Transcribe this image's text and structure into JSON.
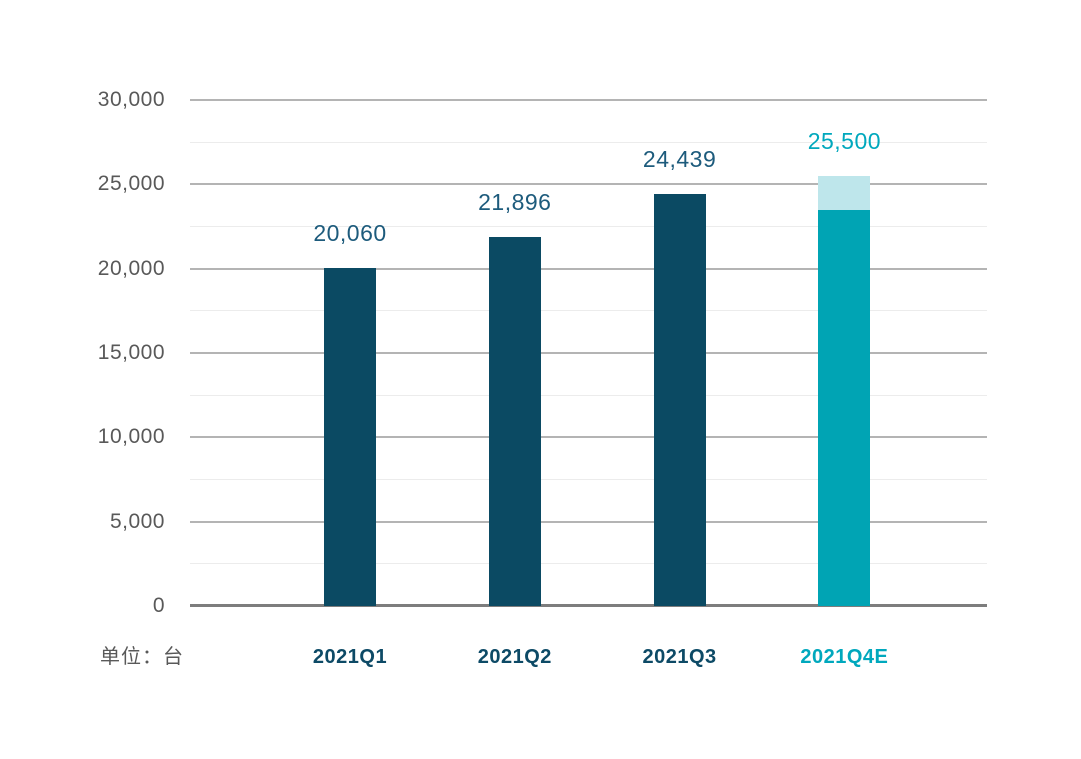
{
  "chart_data": {
    "type": "bar",
    "title": "",
    "unit_label": "单位：台",
    "legend": "none",
    "grid": "horizontal majors every 5000, faint minors every 2500",
    "categories": [
      "2021Q1",
      "2021Q2",
      "2021Q3",
      "2021Q4E"
    ],
    "values": [
      20060,
      21896,
      24439,
      25500
    ],
    "ylim": [
      0,
      30000
    ],
    "bars": [
      {
        "category": "2021Q1",
        "value": 20060,
        "value_label": "20,060",
        "bar_color": "#0b4a63",
        "value_label_color": "#1d5b7c",
        "category_label_color": "#0d4a66"
      },
      {
        "category": "2021Q2",
        "value": 21896,
        "value_label": "21,896",
        "bar_color": "#0b4a63",
        "value_label_color": "#1d5b7c",
        "category_label_color": "#0d4a66"
      },
      {
        "category": "2021Q3",
        "value": 24439,
        "value_label": "24,439",
        "bar_color": "#0b4a63",
        "value_label_color": "#1d5b7c",
        "category_label_color": "#0d4a66"
      },
      {
        "category": "2021Q4E",
        "value": 25500,
        "value_label": "25,500",
        "bar_color": "#00a4b4",
        "segment_split": 23500,
        "segment_top_color": "#bee6eb",
        "value_label_color": "#00a8bd",
        "category_label_color": "#00a8bd"
      }
    ],
    "y_axis": {
      "max": 30000,
      "major_ticks": [
        {
          "value": 0,
          "label": "0"
        },
        {
          "value": 5000,
          "label": "5,000"
        },
        {
          "value": 10000,
          "label": "10,000"
        },
        {
          "value": 15000,
          "label": "15,000"
        },
        {
          "value": 20000,
          "label": "20,000"
        },
        {
          "value": 25000,
          "label": "25,000"
        },
        {
          "value": 30000,
          "label": "30,000"
        }
      ],
      "minor_ticks": [
        2500,
        7500,
        12500,
        17500,
        22500,
        27500
      ]
    },
    "colors": {
      "major_grid": "#b4b4b4",
      "minor_grid": "#ececec",
      "baseline": "#7d7d7d",
      "tick_label": "#595959",
      "unit_label": "#595959"
    }
  }
}
